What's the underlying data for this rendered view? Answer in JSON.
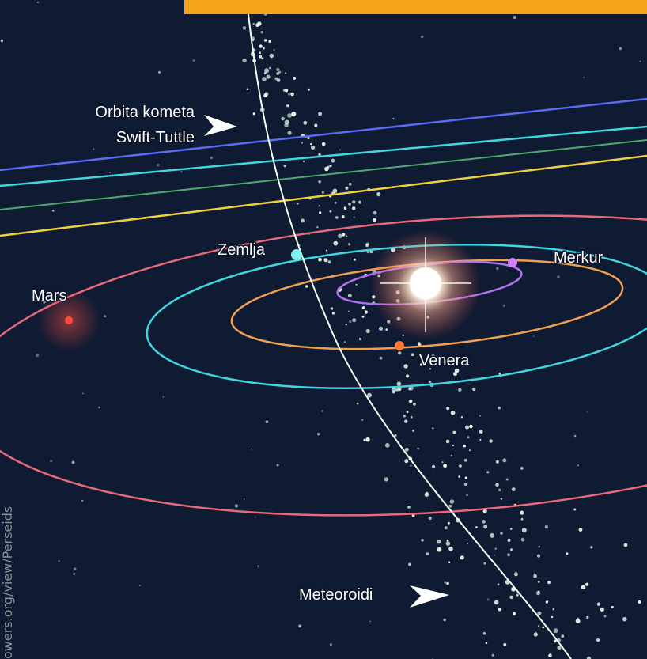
{
  "labels": {
    "comet_orbit": [
      "Orbita kometa",
      "Swift-Tuttle"
    ],
    "earth": "Zemlja",
    "mercury": "Merkur",
    "mars": "Mars",
    "venus": "Venera",
    "meteoroids": "Meteoroidi"
  },
  "credit": "owers.org/view/Perseids"
}
